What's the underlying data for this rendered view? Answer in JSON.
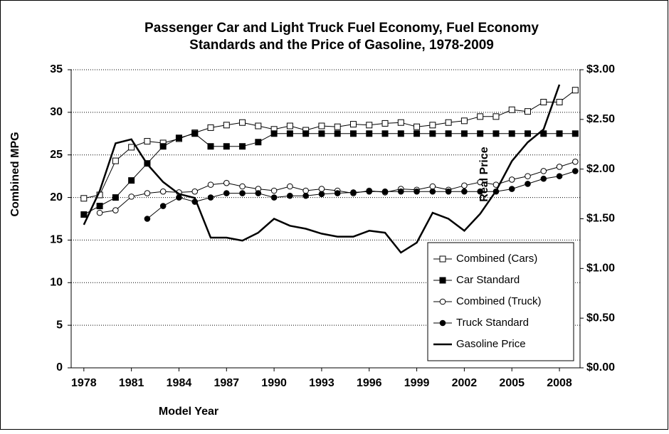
{
  "chart_data": {
    "type": "line",
    "title": [
      "Passenger Car and Light Truck Fuel Economy, Fuel Economy",
      "Standards and the Price of Gasoline, 1978-2009"
    ],
    "x_label": "Model Year",
    "y_label": "Combined MPG",
    "annotation": "Real Price",
    "x": [
      1978,
      1979,
      1980,
      1981,
      1982,
      1983,
      1984,
      1985,
      1986,
      1987,
      1988,
      1989,
      1990,
      1991,
      1992,
      1993,
      1994,
      1995,
      1996,
      1997,
      1998,
      1999,
      2000,
      2001,
      2002,
      2003,
      2004,
      2005,
      2006,
      2007,
      2008,
      2009
    ],
    "xlim": [
      1977.2,
      2009.3
    ],
    "xticks": [
      1978,
      1981,
      1984,
      1987,
      1990,
      1993,
      1996,
      1999,
      2002,
      2005,
      2008
    ],
    "ylim": [
      0,
      35
    ],
    "yticks": [
      0,
      5,
      10,
      15,
      20,
      25,
      30,
      35
    ],
    "y2lim": [
      0,
      3
    ],
    "y2ticks": [
      {
        "value": 0,
        "label": "$0.00"
      },
      {
        "value": 0.5,
        "label": "$0.50"
      },
      {
        "value": 1,
        "label": "$1.00"
      },
      {
        "value": 1.5,
        "label": "$1.50"
      },
      {
        "value": 2,
        "label": "$2.00"
      },
      {
        "value": 2.5,
        "label": "$2.50"
      },
      {
        "value": 3,
        "label": "$3.00"
      }
    ],
    "grid": true,
    "legend": "lower right",
    "series": [
      {
        "name": "Combined (Cars)",
        "color": "#000000",
        "marker": "square-open",
        "values": [
          19.9,
          20.3,
          24.3,
          25.9,
          26.6,
          26.4,
          26.9,
          27.6,
          28.2,
          28.5,
          28.8,
          28.4,
          28.0,
          28.4,
          27.9,
          28.4,
          28.3,
          28.6,
          28.5,
          28.7,
          28.8,
          28.3,
          28.5,
          28.8,
          29.0,
          29.5,
          29.5,
          30.3,
          30.1,
          31.2,
          31.2,
          32.6
        ]
      },
      {
        "name": "Car Standard",
        "color": "#000000",
        "marker": "square-filled",
        "values": [
          18,
          19,
          20,
          22,
          24,
          26,
          27,
          27.5,
          26,
          26,
          26,
          26.5,
          27.5,
          27.5,
          27.5,
          27.5,
          27.5,
          27.5,
          27.5,
          27.5,
          27.5,
          27.5,
          27.5,
          27.5,
          27.5,
          27.5,
          27.5,
          27.5,
          27.5,
          27.5,
          27.5,
          27.5
        ]
      },
      {
        "name": "Combined (Truck)",
        "color": "#000000",
        "marker": "circle-open",
        "values": [
          null,
          18.2,
          18.5,
          20.1,
          20.5,
          20.7,
          20.6,
          20.7,
          21.5,
          21.7,
          21.3,
          21.0,
          20.8,
          21.3,
          20.8,
          21.0,
          20.8,
          20.5,
          20.8,
          20.6,
          21.0,
          20.9,
          21.3,
          20.9,
          21.4,
          21.8,
          21.5,
          22.1,
          22.5,
          23.1,
          23.6,
          24.2
        ]
      },
      {
        "name": "Truck Standard",
        "color": "#000000",
        "marker": "circle-filled",
        "values": [
          null,
          null,
          null,
          null,
          17.5,
          19.0,
          20.0,
          19.5,
          20.0,
          20.5,
          20.5,
          20.5,
          20.0,
          20.2,
          20.2,
          20.4,
          20.5,
          20.6,
          20.7,
          20.7,
          20.7,
          20.7,
          20.7,
          20.7,
          20.7,
          20.7,
          20.7,
          21.0,
          21.6,
          22.2,
          22.5,
          23.1
        ]
      },
      {
        "name": "Gasoline Price",
        "color": "#000000",
        "marker": "none",
        "axis": "y2",
        "values": [
          1.44,
          1.78,
          2.26,
          2.3,
          2.05,
          1.87,
          1.75,
          1.71,
          1.31,
          1.31,
          1.28,
          1.36,
          1.5,
          1.43,
          1.4,
          1.35,
          1.32,
          1.32,
          1.38,
          1.36,
          1.16,
          1.26,
          1.56,
          1.5,
          1.38,
          1.55,
          1.78,
          2.08,
          2.27,
          2.4,
          2.85,
          null
        ]
      }
    ]
  }
}
